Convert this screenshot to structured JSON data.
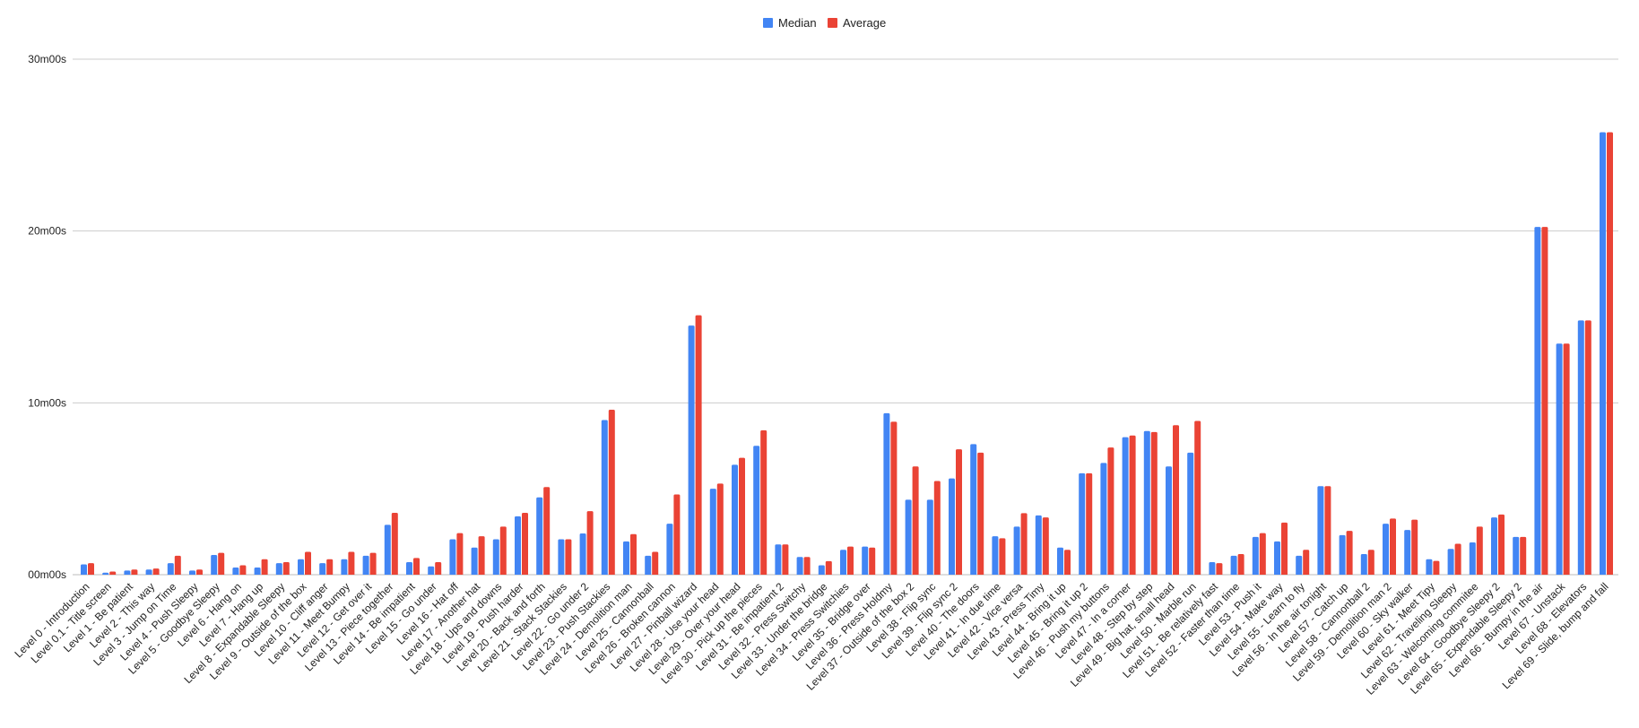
{
  "chart_data": {
    "type": "bar",
    "title": "",
    "xlabel": "",
    "ylabel": "",
    "unit": "minutes",
    "ylim": [
      0,
      30
    ],
    "yticks": [
      {
        "value": 0,
        "label": "00m00s"
      },
      {
        "value": 10,
        "label": "10m00s"
      },
      {
        "value": 20,
        "label": "20m00s"
      },
      {
        "value": 30,
        "label": "30m00s"
      }
    ],
    "grid": true,
    "legend": {
      "position": "top-center",
      "entries": [
        "Median",
        "Average"
      ]
    },
    "colors": {
      "Median": "#4285f4",
      "Average": "#ea4335"
    },
    "categories": [
      "Level 0 - Introduction",
      "Level 0.1 - Title screen",
      "Level 1 - Be patient",
      "Level 2 - This way",
      "Level 3 - Jump on Time",
      "Level 4 - Push Sleepy",
      "Level 5 - Goodbye Sleepy",
      "Level 6 - Hang on",
      "Level 7 - Hang up",
      "Level 8 - Expandable Sleepy",
      "Level 9 - Outside of the box",
      "Level 10 - Cliff anger",
      "Level 11 - Meet Bumpy",
      "Level 12 - Get over it",
      "Level 13 - Piece together",
      "Level 14 - Be impatient",
      "Level 15 - Go under",
      "Level 16 - Hat off",
      "Level 17 - Another hat",
      "Level 18 - Ups and downs",
      "Level 19 - Push harder",
      "Level 20 - Back and forth",
      "Level 21 - Stack Stackies",
      "Level 22 - Go under 2",
      "Level 23 - Push Stackies",
      "Level 24 - Demolition man",
      "Level 25 - Cannonball",
      "Level 26 - Broken cannon",
      "Level 27 - Pinball wizard",
      "Level 28 - Use your head",
      "Level 29 - Over your head",
      "Level 30 - Pick up the pieces",
      "Level 31 - Be impatient 2",
      "Level 32 - Press Switchy",
      "Level 33 - Under the bridge",
      "Level 34 - Press Switchies",
      "Level 35 - Bridge over",
      "Level 36 - Press Holdmy",
      "Level 37 - Outside of the box 2",
      "Level 38 - Flip sync",
      "Level 39 - Flip sync 2",
      "Level 40 - The doors",
      "Level 41 - In due time",
      "Level 42 - Vice versa",
      "Level 43 - Press Timy",
      "Level 44 - Bring it up",
      "Level 45 - Bring it up 2",
      "Level 46 - Push my buttons",
      "Level 47 - In a corner",
      "Level 48 - Step by step",
      "Level 49 - Big hat, small head",
      "Level 50 - Marble run",
      "Level 51 - Be relatively fast",
      "Level 52 - Faster than time",
      "Level 53 - Push it",
      "Level 54 - Make way",
      "Level 55 - Learn to fly",
      "Level 56 - In the air tonight",
      "Level 57 - Catch up",
      "Level 58 - Cannonball 2",
      "Level 59 - Demolition man 2",
      "Level 60 - Sky walker",
      "Level 61 - Meet Tipy",
      "Level 62 - Traveling Sleepy",
      "Level 63 - Welcoming commitee",
      "Level 64 - Goodbye Sleepy 2",
      "Level 65 - Expendable Sleepy 2",
      "Level 66 - Bumpy in the air",
      "Level 67 - Unstack",
      "Level 68 - Elevators",
      "Level 69 - Slide, bump and fall"
    ],
    "series": [
      {
        "name": "Median",
        "values": [
          0.6,
          0.12,
          0.24,
          0.3,
          0.67,
          0.24,
          1.15,
          0.42,
          0.42,
          0.67,
          0.9,
          0.67,
          0.9,
          1.1,
          2.9,
          0.73,
          0.48,
          2.06,
          1.58,
          2.06,
          3.4,
          4.5,
          2.06,
          2.4,
          9.0,
          1.94,
          1.1,
          2.97,
          14.5,
          5.0,
          6.4,
          7.5,
          1.76,
          1.03,
          0.55,
          1.45,
          1.64,
          9.4,
          4.36,
          4.36,
          5.6,
          7.6,
          2.24,
          2.8,
          3.45,
          1.58,
          5.9,
          6.5,
          8.0,
          8.36,
          6.3,
          7.1,
          0.73,
          1.1,
          2.2,
          1.94,
          1.1,
          5.15,
          2.3,
          1.2,
          2.97,
          2.6,
          0.9,
          1.5,
          1.88,
          3.33,
          2.2,
          20.24,
          13.45,
          14.8,
          25.75
        ]
      },
      {
        "name": "Average",
        "values": [
          0.67,
          0.18,
          0.3,
          0.36,
          1.1,
          0.3,
          1.27,
          0.55,
          0.9,
          0.73,
          1.33,
          0.9,
          1.33,
          1.27,
          3.6,
          0.97,
          0.73,
          2.42,
          2.24,
          2.8,
          3.6,
          5.1,
          2.06,
          3.7,
          9.6,
          2.36,
          1.33,
          4.67,
          15.1,
          5.3,
          6.8,
          8.4,
          1.76,
          1.03,
          0.79,
          1.64,
          1.58,
          8.9,
          6.3,
          5.45,
          7.3,
          7.1,
          2.12,
          3.58,
          3.33,
          1.45,
          5.9,
          7.4,
          8.1,
          8.3,
          8.7,
          8.95,
          0.67,
          1.2,
          2.42,
          3.03,
          1.45,
          5.15,
          2.55,
          1.45,
          3.27,
          3.2,
          0.8,
          1.8,
          2.8,
          3.5,
          2.2,
          20.24,
          13.45,
          14.8,
          25.75
        ]
      }
    ]
  }
}
